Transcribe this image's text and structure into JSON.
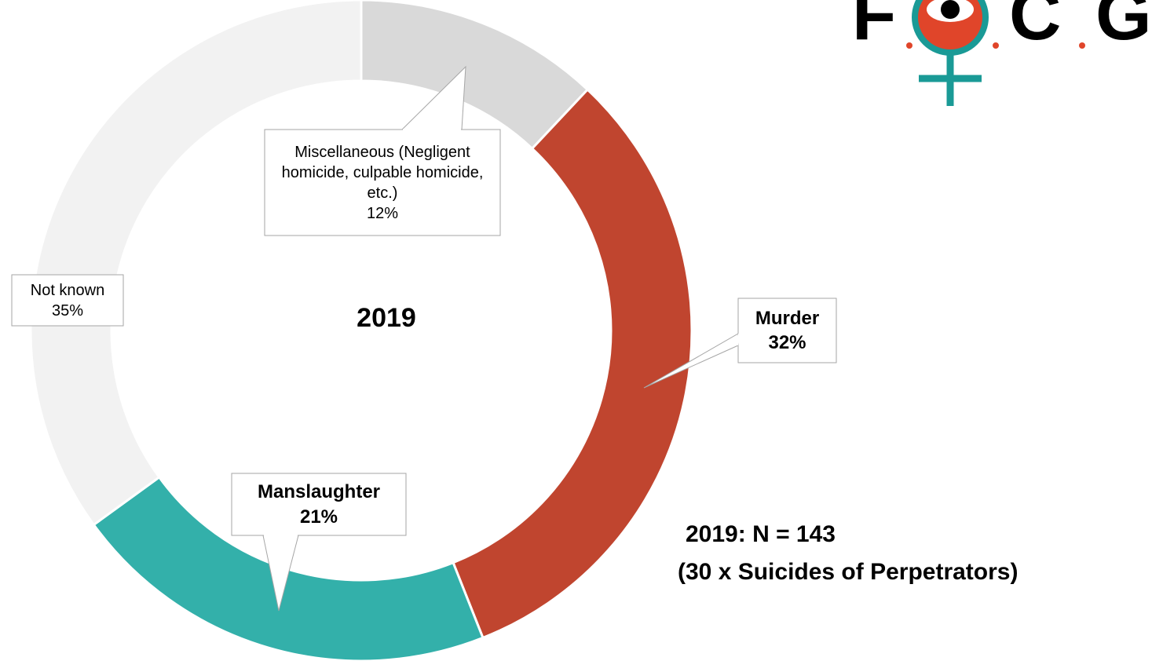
{
  "chart_data": {
    "type": "donut",
    "center_label": "2019",
    "categories": [
      "Miscellaneous (Negligent homicide, culpable homicide, etc.)",
      "Murder",
      "Manslaughter",
      "Not known"
    ],
    "values": [
      12,
      32,
      21,
      35
    ],
    "value_labels": [
      "12%",
      "32%",
      "21%",
      "35%"
    ],
    "colors": [
      "#d9d9d9",
      "#c0452f",
      "#33b0aa",
      "#f2f2f2"
    ],
    "annotation": [
      "2019: N = 143",
      "(30 x Suicides of Perpetrators)"
    ]
  },
  "logo": {
    "letters": [
      "F",
      "C",
      "G"
    ]
  }
}
